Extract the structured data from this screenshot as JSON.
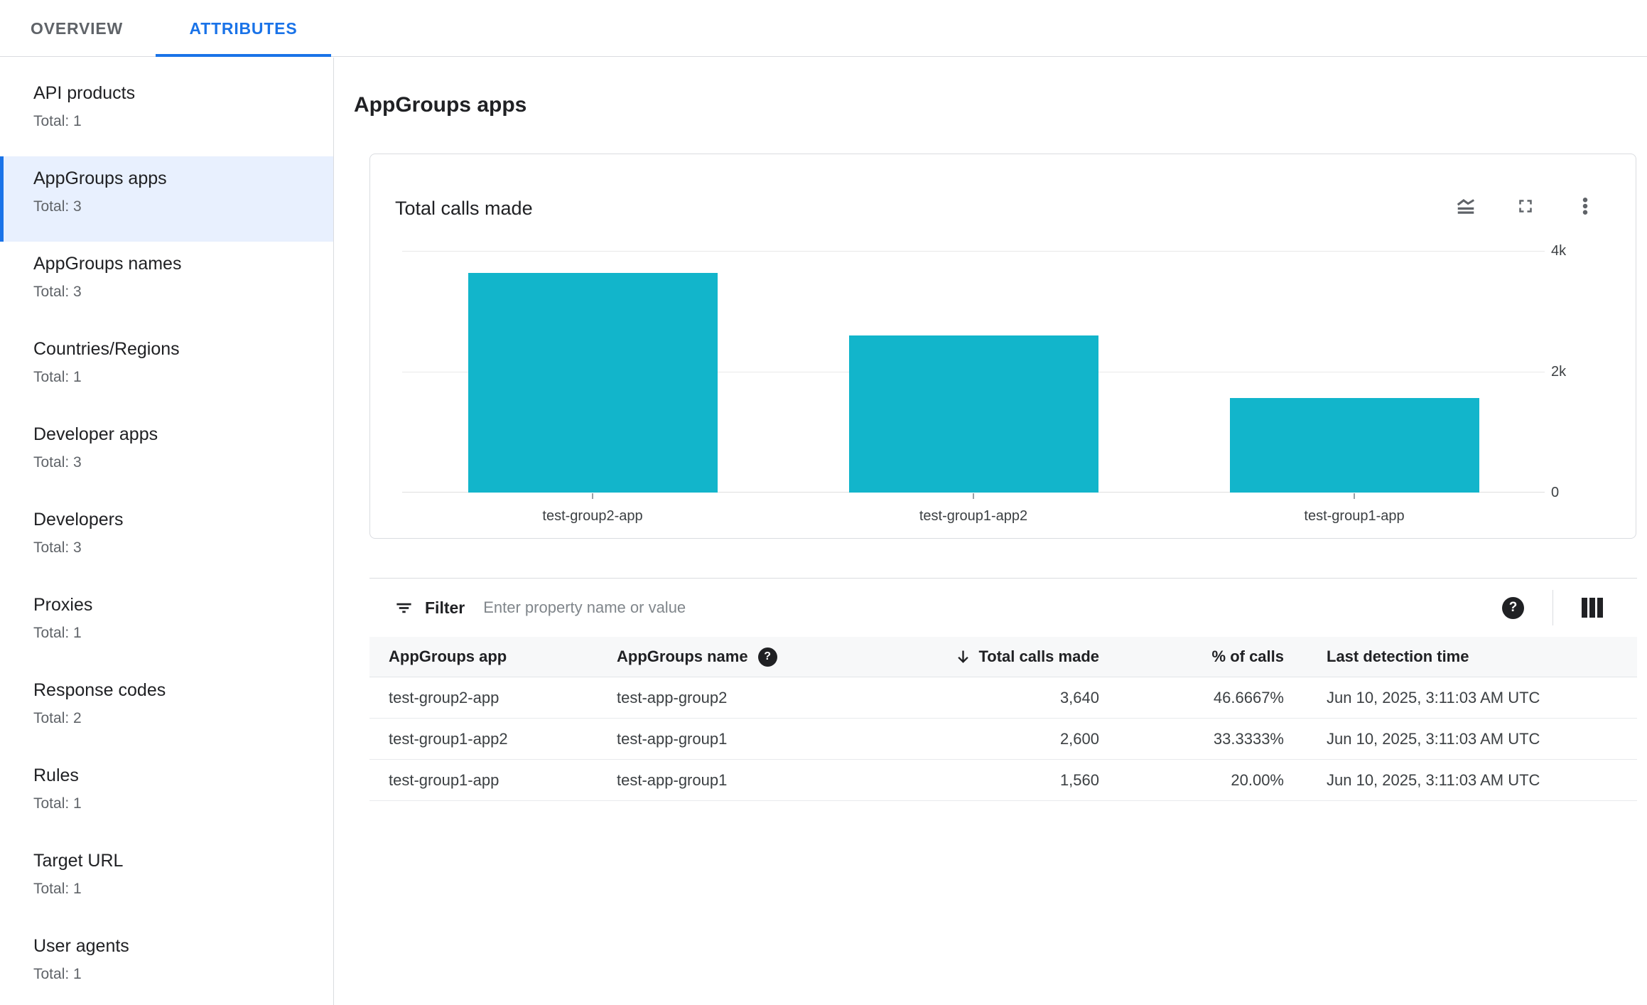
{
  "tabs": {
    "overview": "OVERVIEW",
    "attributes": "ATTRIBUTES"
  },
  "sidebar": {
    "selected_index": 1,
    "items": [
      {
        "label": "API products",
        "total": "Total: 1"
      },
      {
        "label": "AppGroups apps",
        "total": "Total: 3"
      },
      {
        "label": "AppGroups names",
        "total": "Total: 3"
      },
      {
        "label": "Countries/Regions",
        "total": "Total: 1"
      },
      {
        "label": "Developer apps",
        "total": "Total: 3"
      },
      {
        "label": "Developers",
        "total": "Total: 3"
      },
      {
        "label": "Proxies",
        "total": "Total: 1"
      },
      {
        "label": "Response codes",
        "total": "Total: 2"
      },
      {
        "label": "Rules",
        "total": "Total: 1"
      },
      {
        "label": "Target URL",
        "total": "Total: 1"
      },
      {
        "label": "User agents",
        "total": "Total: 1"
      }
    ]
  },
  "main": {
    "title": "AppGroups apps"
  },
  "card": {
    "title": "Total calls made",
    "icons": [
      "chart-type-icon",
      "fullscreen-icon",
      "more-options-icon"
    ]
  },
  "chart_data": {
    "type": "bar",
    "title": "Total calls made",
    "categories": [
      "test-group2-app",
      "test-group1-app2",
      "test-group1-app"
    ],
    "values": [
      3640,
      2600,
      1560
    ],
    "xlabel": "",
    "ylabel": "",
    "ylim": [
      0,
      4000
    ],
    "yticks": [
      "0",
      "2k",
      "4k"
    ],
    "grid": true,
    "legend_position": "none",
    "bar_color": "#12b5cb"
  },
  "filter": {
    "label": "Filter",
    "placeholder": "Enter property name or value"
  },
  "table": {
    "headers": [
      "AppGroups app",
      "AppGroups name",
      "Total calls made",
      "% of calls",
      "Last detection time"
    ],
    "sort": {
      "column": "Total calls made",
      "direction": "desc"
    },
    "rows": [
      {
        "app": "test-group2-app",
        "name": "test-app-group2",
        "calls": "3,640",
        "pct": "46.6667%",
        "last": "Jun 10, 2025, 3:11:03 AM UTC"
      },
      {
        "app": "test-group1-app2",
        "name": "test-app-group1",
        "calls": "2,600",
        "pct": "33.3333%",
        "last": "Jun 10, 2025, 3:11:03 AM UTC"
      },
      {
        "app": "test-group1-app",
        "name": "test-app-group1",
        "calls": "1,560",
        "pct": "20.00%",
        "last": "Jun 10, 2025, 3:11:03 AM UTC"
      }
    ]
  },
  "colors": {
    "accent": "#1a73e8",
    "selected_bg": "#e8f0fe",
    "bar": "#12b5cb",
    "icon_gray": "#5f6368"
  }
}
